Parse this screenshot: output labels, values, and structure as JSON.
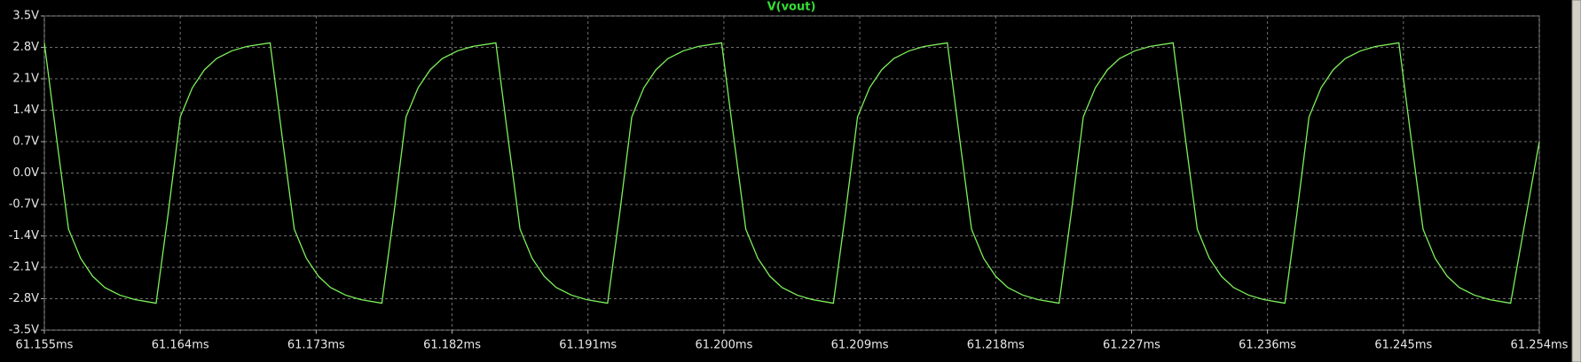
{
  "chart_data": {
    "type": "line",
    "title": "V(vout)",
    "x": [
      61.155,
      61.1558,
      61.1566,
      61.1574,
      61.1582,
      61.159,
      61.16,
      61.161,
      61.1624,
      61.1632,
      61.164,
      61.1648,
      61.1656,
      61.1664,
      61.1674,
      61.1684,
      61.16995,
      61.17075,
      61.17155,
      61.17235,
      61.17315,
      61.17395,
      61.17495,
      61.17595,
      61.17735,
      61.17815,
      61.17895,
      61.17975,
      61.18055,
      61.18135,
      61.18235,
      61.18335,
      61.1849,
      61.1857,
      61.1865,
      61.1873,
      61.1881,
      61.1889,
      61.1899,
      61.1909,
      61.1923,
      61.1931,
      61.1939,
      61.1947,
      61.1955,
      61.1963,
      61.1973,
      61.1983,
      61.19985,
      61.20065,
      61.20145,
      61.20225,
      61.20305,
      61.20385,
      61.20485,
      61.20585,
      61.20725,
      61.20805,
      61.20885,
      61.20965,
      61.21045,
      61.21125,
      61.21225,
      61.21325,
      61.2148,
      61.2156,
      61.2164,
      61.2172,
      61.218,
      61.2188,
      61.2198,
      61.2208,
      61.2222,
      61.223,
      61.2238,
      61.2246,
      61.2254,
      61.2262,
      61.2272,
      61.2282,
      61.22975,
      61.23055,
      61.23135,
      61.23215,
      61.23295,
      61.23375,
      61.23475,
      61.23575,
      61.23715,
      61.23795,
      61.23875,
      61.23955,
      61.24035,
      61.24115,
      61.24215,
      61.24315,
      61.2447,
      61.2455,
      61.2463,
      61.2471,
      61.2479,
      61.2487,
      61.2497,
      61.2507,
      61.2521,
      61.254
    ],
    "series": [
      {
        "color": "#7cf05a",
        "values": [
          2.9,
          0.8,
          -1.25,
          -1.9,
          -2.3,
          -2.55,
          -2.72,
          -2.82,
          -2.9,
          -0.9,
          1.25,
          1.9,
          2.3,
          2.55,
          2.72,
          2.82,
          2.9,
          0.8,
          -1.25,
          -1.9,
          -2.3,
          -2.55,
          -2.72,
          -2.82,
          -2.9,
          -0.9,
          1.25,
          1.9,
          2.3,
          2.55,
          2.72,
          2.82,
          2.9,
          0.8,
          -1.25,
          -1.9,
          -2.3,
          -2.55,
          -2.72,
          -2.82,
          -2.9,
          -0.9,
          1.25,
          1.9,
          2.3,
          2.55,
          2.72,
          2.82,
          2.9,
          0.8,
          -1.25,
          -1.9,
          -2.3,
          -2.55,
          -2.72,
          -2.82,
          -2.9,
          -0.9,
          1.25,
          1.9,
          2.3,
          2.55,
          2.72,
          2.82,
          2.9,
          0.8,
          -1.25,
          -1.9,
          -2.3,
          -2.55,
          -2.72,
          -2.82,
          -2.9,
          -0.9,
          1.25,
          1.9,
          2.3,
          2.55,
          2.72,
          2.82,
          2.9,
          0.8,
          -1.25,
          -1.9,
          -2.3,
          -2.55,
          -2.72,
          -2.82,
          -2.9,
          -0.9,
          1.25,
          1.9,
          2.3,
          2.55,
          2.72,
          2.82,
          2.9,
          0.8,
          -1.25,
          -1.9,
          -2.3,
          -2.55,
          -2.72,
          -2.82,
          -2.9,
          0.7
        ]
      }
    ],
    "xlim": [
      61.155,
      61.254
    ],
    "xticks": [
      {
        "value": 61.155,
        "label": "61.155ms"
      },
      {
        "value": 61.164,
        "label": "61.164ms"
      },
      {
        "value": 61.173,
        "label": "61.173ms"
      },
      {
        "value": 61.182,
        "label": "61.182ms"
      },
      {
        "value": 61.191,
        "label": "61.191ms"
      },
      {
        "value": 61.2,
        "label": "61.200ms"
      },
      {
        "value": 61.209,
        "label": "61.209ms"
      },
      {
        "value": 61.218,
        "label": "61.218ms"
      },
      {
        "value": 61.227,
        "label": "61.227ms"
      },
      {
        "value": 61.236,
        "label": "61.236ms"
      },
      {
        "value": 61.245,
        "label": "61.245ms"
      },
      {
        "value": 61.254,
        "label": "61.254ms"
      }
    ],
    "ylim": [
      -3.5,
      3.5
    ],
    "yticks": [
      {
        "value": 3.5,
        "label": "3.5V"
      },
      {
        "value": 2.8,
        "label": "2.8V"
      },
      {
        "value": 2.1,
        "label": "2.1V"
      },
      {
        "value": 1.4,
        "label": "1.4V"
      },
      {
        "value": 0.7,
        "label": "0.7V"
      },
      {
        "value": 0.0,
        "label": "0.0V"
      },
      {
        "value": -0.7,
        "label": "-0.7V"
      },
      {
        "value": -1.4,
        "label": "-1.4V"
      },
      {
        "value": -2.1,
        "label": "-2.1V"
      },
      {
        "value": -2.8,
        "label": "-2.8V"
      },
      {
        "value": -3.5,
        "label": "-3.5V"
      }
    ],
    "grid": true
  }
}
